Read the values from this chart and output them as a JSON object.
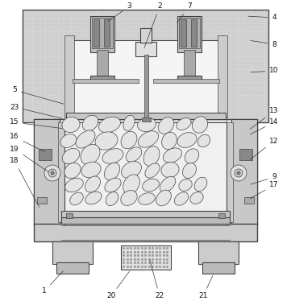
{
  "bg_color": "#ffffff",
  "lc": "#444444",
  "fill_concrete": "#c8c8c8",
  "fill_light": "#e0e0e0",
  "fill_med": "#bbbbbb",
  "fill_dark": "#888888",
  "fill_stone": "#e8e8e8"
}
